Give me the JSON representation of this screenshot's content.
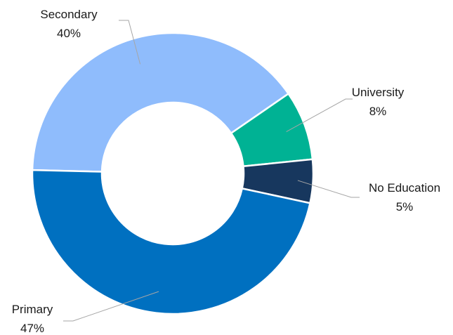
{
  "chart_data": {
    "type": "pie",
    "variant": "donut",
    "title": "",
    "slices": [
      {
        "label": "Secondary",
        "value": 40,
        "value_label": "40%",
        "color": "#8fbcfc"
      },
      {
        "label": "University",
        "value": 8,
        "value_label": "8%",
        "color": "#00b294"
      },
      {
        "label": "No Education",
        "value": 5,
        "value_label": "5%",
        "color": "#17375e"
      },
      {
        "label": "Primary",
        "value": 47,
        "value_label": "47%",
        "color": "#0070c0"
      }
    ],
    "legend": "none",
    "labels": "outside with leader lines"
  }
}
